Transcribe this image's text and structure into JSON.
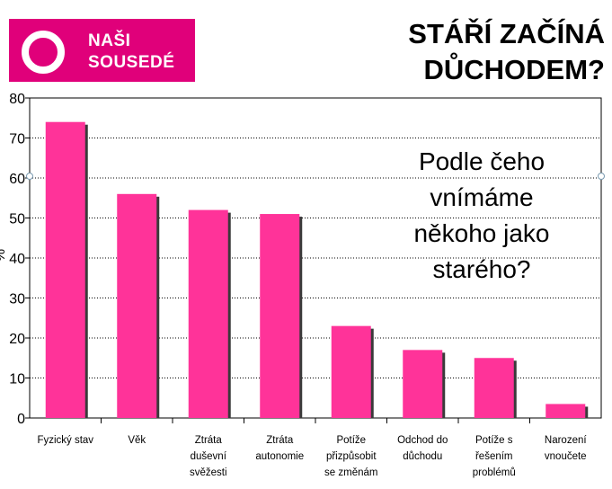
{
  "header": {
    "logo_line1": "NAŠI",
    "logo_line2": "SOUSEDÉ",
    "title_line1": "STÁŘÍ ZAČÍNÁ",
    "title_line2": "DŮCHODEM?"
  },
  "question": {
    "line1": "Podle čeho",
    "line2": "vnímáme",
    "line3": "někoho jako",
    "line4": "starého?"
  },
  "colors": {
    "bar": "#ff3399",
    "brand": "#e0007a"
  },
  "chart_data": {
    "type": "bar",
    "title": "",
    "ylabel": "%",
    "xlabel": "",
    "ylim": [
      0,
      80
    ],
    "yticks": [
      0,
      10,
      20,
      30,
      40,
      50,
      60,
      70,
      80
    ],
    "grid": true,
    "categories": [
      [
        "Fyzický stav"
      ],
      [
        "Věk"
      ],
      [
        "Ztráta",
        "duševní",
        "svěžesti"
      ],
      [
        "Ztráta",
        "autonomie"
      ],
      [
        "Potíže",
        "přizpůsobit",
        "",
        "se změnám"
      ],
      [
        "Odchod do",
        "důchodu"
      ],
      [
        "Potíže s",
        "řešením",
        "problémů"
      ],
      [
        "Narození",
        "vnoučete"
      ]
    ],
    "values": [
      74,
      56,
      52,
      51,
      23,
      17,
      15,
      3.5
    ]
  }
}
